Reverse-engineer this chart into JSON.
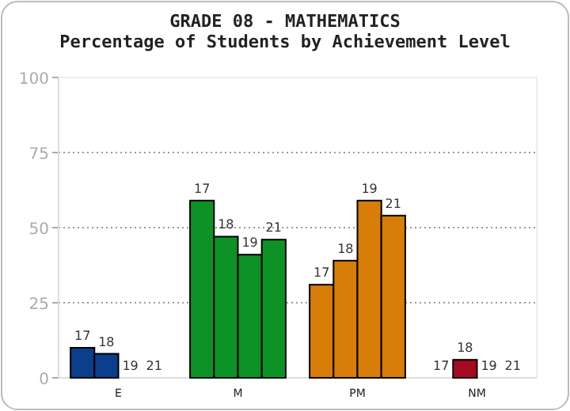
{
  "chart_data": {
    "type": "bar",
    "title": "GRADE 08 - MATHEMATICS",
    "subtitle": "Percentage of Students by Achievement Level",
    "categories": [
      "E",
      "M",
      "PM",
      "NM"
    ],
    "series": [
      {
        "name": "17",
        "colors": [
          "#0b3f8c",
          "#0d9325",
          "#d87d08",
          "#a50a20"
        ],
        "values": [
          10,
          59,
          31,
          0
        ]
      },
      {
        "name": "18",
        "colors": [
          "#0b3f8c",
          "#0d9325",
          "#d87d08",
          "#a50a20"
        ],
        "values": [
          8,
          47,
          39,
          6
        ]
      },
      {
        "name": "19",
        "colors": [
          "#0b3f8c",
          "#0d9325",
          "#d87d08",
          "#a50a20"
        ],
        "values": [
          0,
          41,
          59,
          0
        ]
      },
      {
        "name": "21",
        "colors": [
          "#0b3f8c",
          "#0d9325",
          "#d87d08",
          "#a50a20"
        ],
        "values": [
          0,
          46,
          54,
          0
        ]
      }
    ],
    "ylim": [
      0,
      100
    ],
    "yticks": [
      0,
      25,
      50,
      75,
      100
    ],
    "grid": "y"
  }
}
